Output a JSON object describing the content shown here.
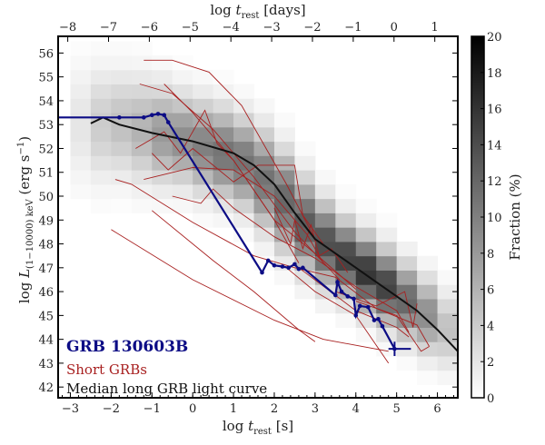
{
  "chart_data": {
    "type": "heatmap",
    "xlabel": {
      "prefix": "log ",
      "var": "t",
      "sub": "rest",
      "suffix": " [s]"
    },
    "x2label": {
      "prefix": "log ",
      "var": "t",
      "sub": "rest",
      "suffix": " [days]"
    },
    "ylabel": {
      "prefix": "log ",
      "var": "L",
      "sub": "(1−10000) keV",
      "suffix": " (erg s",
      "sup": "−1",
      "close": ")"
    },
    "xlim": [
      -3.3,
      6.5
    ],
    "ylim": [
      41.55,
      56.7
    ],
    "xticks": [
      -3,
      -2,
      -1,
      0,
      1,
      2,
      3,
      4,
      5,
      6
    ],
    "x2ticks": [
      -8,
      -7,
      -6,
      -5,
      -4,
      -3,
      -2,
      -1,
      0,
      1
    ],
    "x2_offset_log_s_per_day": 4.936,
    "yticks": [
      42,
      43,
      44,
      45,
      46,
      47,
      48,
      49,
      50,
      51,
      52,
      53,
      54,
      55,
      56
    ],
    "colorbar": {
      "label": "Fraction (%)",
      "range": [
        0,
        20
      ],
      "ticks": [
        0,
        2,
        4,
        6,
        8,
        10,
        12,
        14,
        16,
        18,
        20
      ]
    },
    "heatmap_columns": [
      {
        "x": -2.75,
        "y_center": 53.0,
        "spread": 1.6,
        "peak": 2
      },
      {
        "x": -2.25,
        "y_center": 53.0,
        "spread": 1.5,
        "peak": 4
      },
      {
        "x": -1.75,
        "y_center": 53.0,
        "spread": 1.4,
        "peak": 5
      },
      {
        "x": -1.25,
        "y_center": 52.8,
        "spread": 1.4,
        "peak": 6
      },
      {
        "x": -0.75,
        "y_center": 52.6,
        "spread": 1.3,
        "peak": 8
      },
      {
        "x": -0.25,
        "y_center": 52.4,
        "spread": 1.2,
        "peak": 9
      },
      {
        "x": 0.25,
        "y_center": 52.1,
        "spread": 1.2,
        "peak": 10
      },
      {
        "x": 0.75,
        "y_center": 51.8,
        "spread": 1.2,
        "peak": 11
      },
      {
        "x": 1.25,
        "y_center": 51.4,
        "spread": 1.2,
        "peak": 11
      },
      {
        "x": 1.75,
        "y_center": 50.7,
        "spread": 1.3,
        "peak": 11
      },
      {
        "x": 2.25,
        "y_center": 49.8,
        "spread": 1.3,
        "peak": 12
      },
      {
        "x": 2.75,
        "y_center": 48.8,
        "spread": 1.2,
        "peak": 13
      },
      {
        "x": 3.25,
        "y_center": 48.0,
        "spread": 1.1,
        "peak": 14
      },
      {
        "x": 3.75,
        "y_center": 47.4,
        "spread": 1.0,
        "peak": 15
      },
      {
        "x": 4.25,
        "y_center": 46.8,
        "spread": 1.0,
        "peak": 16
      },
      {
        "x": 4.75,
        "y_center": 46.2,
        "spread": 1.0,
        "peak": 15
      },
      {
        "x": 5.25,
        "y_center": 45.6,
        "spread": 1.0,
        "peak": 12
      },
      {
        "x": 5.75,
        "y_center": 45.0,
        "spread": 1.0,
        "peak": 9
      },
      {
        "x": 6.25,
        "y_center": 44.4,
        "spread": 1.0,
        "peak": 5
      }
    ],
    "series": [
      {
        "name": "Median long GRB light curve",
        "color": "#111111",
        "type": "line",
        "points": [
          [
            -2.5,
            53.05
          ],
          [
            -2.2,
            53.3
          ],
          [
            -1.8,
            53.0
          ],
          [
            -1,
            52.65
          ],
          [
            0,
            52.3
          ],
          [
            1,
            51.8
          ],
          [
            1.5,
            51.3
          ],
          [
            2,
            50.5
          ],
          [
            2.5,
            49.3
          ],
          [
            3,
            48.2
          ],
          [
            3.5,
            47.6
          ],
          [
            4,
            47.0
          ],
          [
            4.5,
            46.4
          ],
          [
            5,
            45.8
          ],
          [
            5.5,
            45.2
          ],
          [
            6,
            44.4
          ],
          [
            6.5,
            43.5
          ]
        ]
      },
      {
        "name": "GRB 130603B",
        "color": "#0c0c85",
        "type": "line",
        "points": [
          [
            -3.3,
            53.3
          ],
          [
            -1.8,
            53.3
          ],
          [
            -1.2,
            53.3
          ],
          [
            -1.0,
            53.4
          ],
          [
            -0.85,
            53.45
          ],
          [
            -0.7,
            53.4
          ],
          [
            -0.6,
            53.1
          ],
          [
            1.7,
            46.8
          ],
          [
            1.85,
            47.3
          ],
          [
            2.0,
            47.1
          ],
          [
            2.2,
            47.05
          ],
          [
            2.35,
            47.0
          ],
          [
            2.5,
            47.15
          ],
          [
            2.6,
            46.95
          ],
          [
            2.7,
            47.0
          ],
          [
            3.5,
            45.85
          ],
          [
            3.55,
            46.4
          ],
          [
            3.65,
            46.0
          ],
          [
            3.8,
            45.8
          ],
          [
            3.95,
            45.7
          ],
          [
            4.0,
            45.0
          ],
          [
            4.1,
            45.4
          ],
          [
            4.3,
            45.35
          ],
          [
            4.45,
            44.8
          ],
          [
            4.55,
            44.85
          ],
          [
            4.65,
            44.55
          ],
          [
            4.95,
            43.6
          ]
        ],
        "errorbar": {
          "x": 4.95,
          "y": 43.6,
          "xerr": [
            0.15,
            0.4
          ],
          "yerr": [
            0.3,
            0.3
          ]
        }
      },
      {
        "name": "Short GRBs",
        "color": "#a82020",
        "type": "lines",
        "curves": [
          [
            [
              -1.2,
              55.7
            ],
            [
              -0.5,
              55.7
            ],
            [
              0.4,
              55.2
            ],
            [
              1.2,
              53.8
            ],
            [
              2.3,
              50.5
            ],
            [
              3.0,
              48.2
            ]
          ],
          [
            [
              -1.3,
              54.7
            ],
            [
              -0.5,
              54.3
            ],
            [
              0.5,
              52.8
            ],
            [
              1.5,
              50.8
            ],
            [
              2.5,
              48.5
            ],
            [
              3.6,
              46.5
            ]
          ],
          [
            [
              -0.7,
              54.7
            ],
            [
              0,
              53.5
            ],
            [
              1,
              51.5
            ],
            [
              2,
              49.0
            ],
            [
              2.6,
              47.2
            ]
          ],
          [
            [
              -1.4,
              52.0
            ],
            [
              -0.7,
              52.7
            ],
            [
              -0.3,
              51.8
            ],
            [
              0.3,
              53.6
            ],
            [
              0.6,
              52.2
            ],
            [
              1,
              51.5
            ],
            [
              2,
              49.0
            ],
            [
              3,
              47.6
            ],
            [
              4,
              46.1
            ]
          ],
          [
            [
              -1.0,
              51.8
            ],
            [
              -0.6,
              51.1
            ],
            [
              0,
              52.0
            ],
            [
              0.5,
              51.3
            ],
            [
              1,
              50.6
            ],
            [
              1.6,
              51.3
            ],
            [
              2.5,
              51.3
            ],
            [
              2.7,
              49.2
            ],
            [
              3.2,
              48.0
            ]
          ],
          [
            [
              -1.2,
              50.7
            ],
            [
              0,
              51.2
            ],
            [
              1,
              51.1
            ],
            [
              2,
              50.0
            ],
            [
              2.8,
              48.4
            ],
            [
              3.2,
              47.2
            ]
          ],
          [
            [
              -0.5,
              50.0
            ],
            [
              0.2,
              49.7
            ],
            [
              0.5,
              50.3
            ],
            [
              1,
              49.5
            ],
            [
              2,
              48.3
            ],
            [
              3,
              47.4
            ],
            [
              4,
              46.2
            ],
            [
              5,
              45.2
            ],
            [
              5.3,
              44.3
            ]
          ],
          [
            [
              -1.9,
              50.7
            ],
            [
              -1.5,
              50.5
            ],
            [
              0,
              48.9
            ],
            [
              1.5,
              47.5
            ],
            [
              2.5,
              47.0
            ],
            [
              3.5,
              46.6
            ],
            [
              4.5,
              45.3
            ],
            [
              5.5,
              44.6
            ],
            [
              5.8,
              43.7
            ]
          ],
          [
            [
              -1.0,
              49.4
            ],
            [
              0.5,
              47.3
            ],
            [
              1.5,
              46.0
            ],
            [
              2.6,
              44.4
            ],
            [
              3.0,
              43.9
            ]
          ],
          [
            [
              -2.0,
              48.6
            ],
            [
              0,
              46.5
            ],
            [
              2.0,
              44.8
            ],
            [
              3.2,
              44.0
            ],
            [
              4.8,
              43.5
            ]
          ],
          [
            [
              2.3,
              47.0
            ],
            [
              3.0,
              46.0
            ],
            [
              4.0,
              45.0
            ],
            [
              4.8,
              43.0
            ]
          ],
          [
            [
              2.6,
              47.0
            ],
            [
              4.0,
              45.2
            ],
            [
              5.0,
              44.5
            ],
            [
              5.3,
              44.1
            ]
          ],
          [
            [
              3.5,
              46.0
            ],
            [
              4.5,
              45.4
            ],
            [
              5.2,
              46.0
            ],
            [
              5.4,
              44.5
            ],
            [
              5.5,
              45.5
            ]
          ],
          [
            [
              4.0,
              45.6
            ],
            [
              5.0,
              45.0
            ],
            [
              5.6,
              43.5
            ],
            [
              5.8,
              43.7
            ]
          ],
          [
            [
              2.0,
              49.5
            ],
            [
              2.4,
              48.0
            ],
            [
              2.5,
              49.0
            ],
            [
              2.7,
              47.8
            ],
            [
              2.9,
              48.8
            ],
            [
              3.1,
              47.5
            ],
            [
              3.4,
              47.8
            ],
            [
              3.8,
              46.8
            ]
          ]
        ]
      }
    ],
    "legend": {
      "placement": "bottom-left",
      "entries": [
        {
          "label": "GRB 130603B",
          "color": "#0c0c85"
        },
        {
          "label": "Short GRBs",
          "color": "#a82020"
        },
        {
          "label": "Median long GRB light curve",
          "color": "#111111"
        }
      ]
    }
  }
}
